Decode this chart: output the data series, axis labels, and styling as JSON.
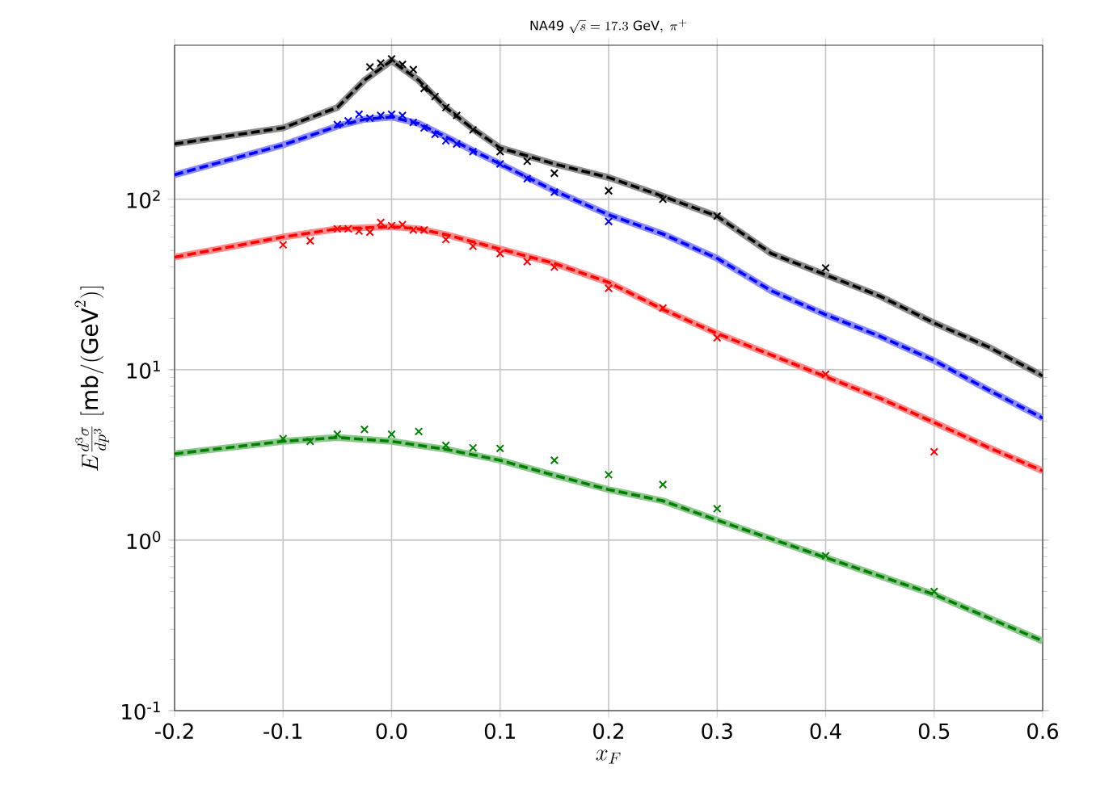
{
  "chart_data": {
    "type": "line",
    "title": "\\mathrm{NA49}\\ \\sqrt{s} = 17.3\\ \\mathrm{GeV},\\ \\pi^+",
    "xlabel": "x_F",
    "ylabel": "E\\frac{d^3\\sigma}{dp^3}\\ [\\mathrm{mb}/(\\mathrm{GeV}^2)]",
    "log": "y",
    "grid": true,
    "xlim": [
      -0.2,
      0.6
    ],
    "ylim": [
      0.1,
      800
    ],
    "xticks": [
      -0.2,
      -0.1,
      {
        "value": 0,
        "label": "0.0"
      },
      0.1,
      0.2,
      0.3,
      0.4,
      0.5,
      0.6
    ],
    "yticks": [
      {
        "value": 0.1,
        "label": "10$^{-1}$"
      },
      {
        "value": 1,
        "label": "10$^{0}$"
      },
      {
        "value": 10,
        "label": "10$^{1}$"
      },
      {
        "value": 100,
        "label": "10$^{2}$"
      }
    ],
    "series": [
      {
        "line_style": "dashed",
        "color": "#000000",
        "x": [
          -0.2,
          -0.1,
          -0.05,
          -0.025,
          0,
          0.025,
          0.05,
          0.075,
          0.1,
          0.15,
          0.2,
          0.25,
          0.3,
          0.35,
          0.4,
          0.45,
          0.5,
          0.55,
          0.6
        ],
        "values": [
          211,
          262,
          345,
          498,
          650,
          498,
          345,
          258,
          200,
          161,
          134,
          104,
          79.5,
          48,
          36,
          27,
          18.8,
          13.6,
          9.2
        ]
      },
      {
        "line_style": "dashed",
        "color": "#0000ff",
        "x": [
          -0.2,
          -0.1,
          -0.05,
          -0.025,
          0,
          0.025,
          0.05,
          0.075,
          0.1,
          0.15,
          0.2,
          0.25,
          0.3,
          0.35,
          0.4,
          0.45,
          0.5,
          0.55,
          0.6
        ],
        "values": [
          139,
          208,
          268,
          294,
          303,
          278,
          232,
          193,
          161,
          112,
          81,
          62.5,
          45,
          29,
          21,
          15.7,
          11.3,
          7.6,
          5.2
        ]
      },
      {
        "line_style": "dashed",
        "color": "#ff0000",
        "x": [
          -0.2,
          -0.1,
          -0.05,
          0,
          0.025,
          0.05,
          0.1,
          0.15,
          0.2,
          0.25,
          0.3,
          0.35,
          0.4,
          0.45,
          0.5,
          0.55,
          0.6
        ],
        "values": [
          45.7,
          60,
          67,
          69,
          67,
          62,
          51,
          42,
          32.5,
          22.6,
          16.3,
          12.2,
          9.1,
          6.8,
          4.9,
          3.5,
          2.55
        ]
      },
      {
        "line_style": "dashed",
        "color": "#008000",
        "x": [
          -0.2,
          -0.1,
          -0.05,
          0,
          0.05,
          0.1,
          0.15,
          0.2,
          0.25,
          0.3,
          0.4,
          0.5,
          0.6
        ],
        "values": [
          3.21,
          3.8,
          4.0,
          3.8,
          3.41,
          2.94,
          2.4,
          1.98,
          1.7,
          1.31,
          0.79,
          0.48,
          0.256
        ]
      },
      {
        "type": "scatter",
        "marker": "cross",
        "color": "#000000",
        "x": [
          -0.02,
          -0.01,
          0,
          0.01,
          0.02,
          0.03,
          0.04,
          0.05,
          0.06,
          0.075,
          0.1,
          0.125,
          0.15,
          0.2,
          0.25,
          0.3,
          0.4
        ],
        "values": [
          596,
          628,
          665,
          618,
          575,
          446,
          400,
          345,
          310,
          255,
          190,
          167,
          142,
          112,
          100,
          79.6,
          39.5
        ]
      },
      {
        "type": "scatter",
        "marker": "cross",
        "color": "#0000ff",
        "x": [
          -0.05,
          -0.04,
          -0.03,
          -0.02,
          -0.01,
          0,
          0.01,
          0.02,
          0.03,
          0.04,
          0.05,
          0.06,
          0.075,
          0.1,
          0.125,
          0.15,
          0.2
        ],
        "values": [
          274,
          288,
          315,
          299,
          310,
          315,
          310,
          282,
          262,
          240,
          220,
          211,
          190,
          161,
          132,
          110,
          74
        ]
      },
      {
        "type": "scatter",
        "marker": "cross",
        "color": "#ff0000",
        "x": [
          -0.1,
          -0.075,
          -0.05,
          -0.04,
          -0.03,
          -0.02,
          -0.01,
          0,
          0.01,
          0.02,
          0.03,
          0.05,
          0.075,
          0.1,
          0.125,
          0.15,
          0.2,
          0.25,
          0.3,
          0.4,
          0.5
        ],
        "values": [
          54,
          57,
          67,
          67,
          65,
          64,
          73,
          70,
          71,
          66,
          66,
          58,
          53,
          48,
          43,
          40,
          30,
          23,
          15.4,
          9.4,
          3.3
        ]
      },
      {
        "type": "scatter",
        "marker": "cross",
        "color": "#008000",
        "x": [
          -0.1,
          -0.075,
          -0.05,
          -0.025,
          0,
          0.025,
          0.05,
          0.075,
          0.1,
          0.15,
          0.2,
          0.25,
          0.3,
          0.4,
          0.5
        ],
        "values": [
          3.94,
          3.8,
          4.18,
          4.46,
          4.18,
          4.34,
          3.6,
          3.48,
          3.45,
          2.94,
          2.42,
          2.12,
          1.53,
          0.81,
          0.5
        ]
      }
    ]
  }
}
